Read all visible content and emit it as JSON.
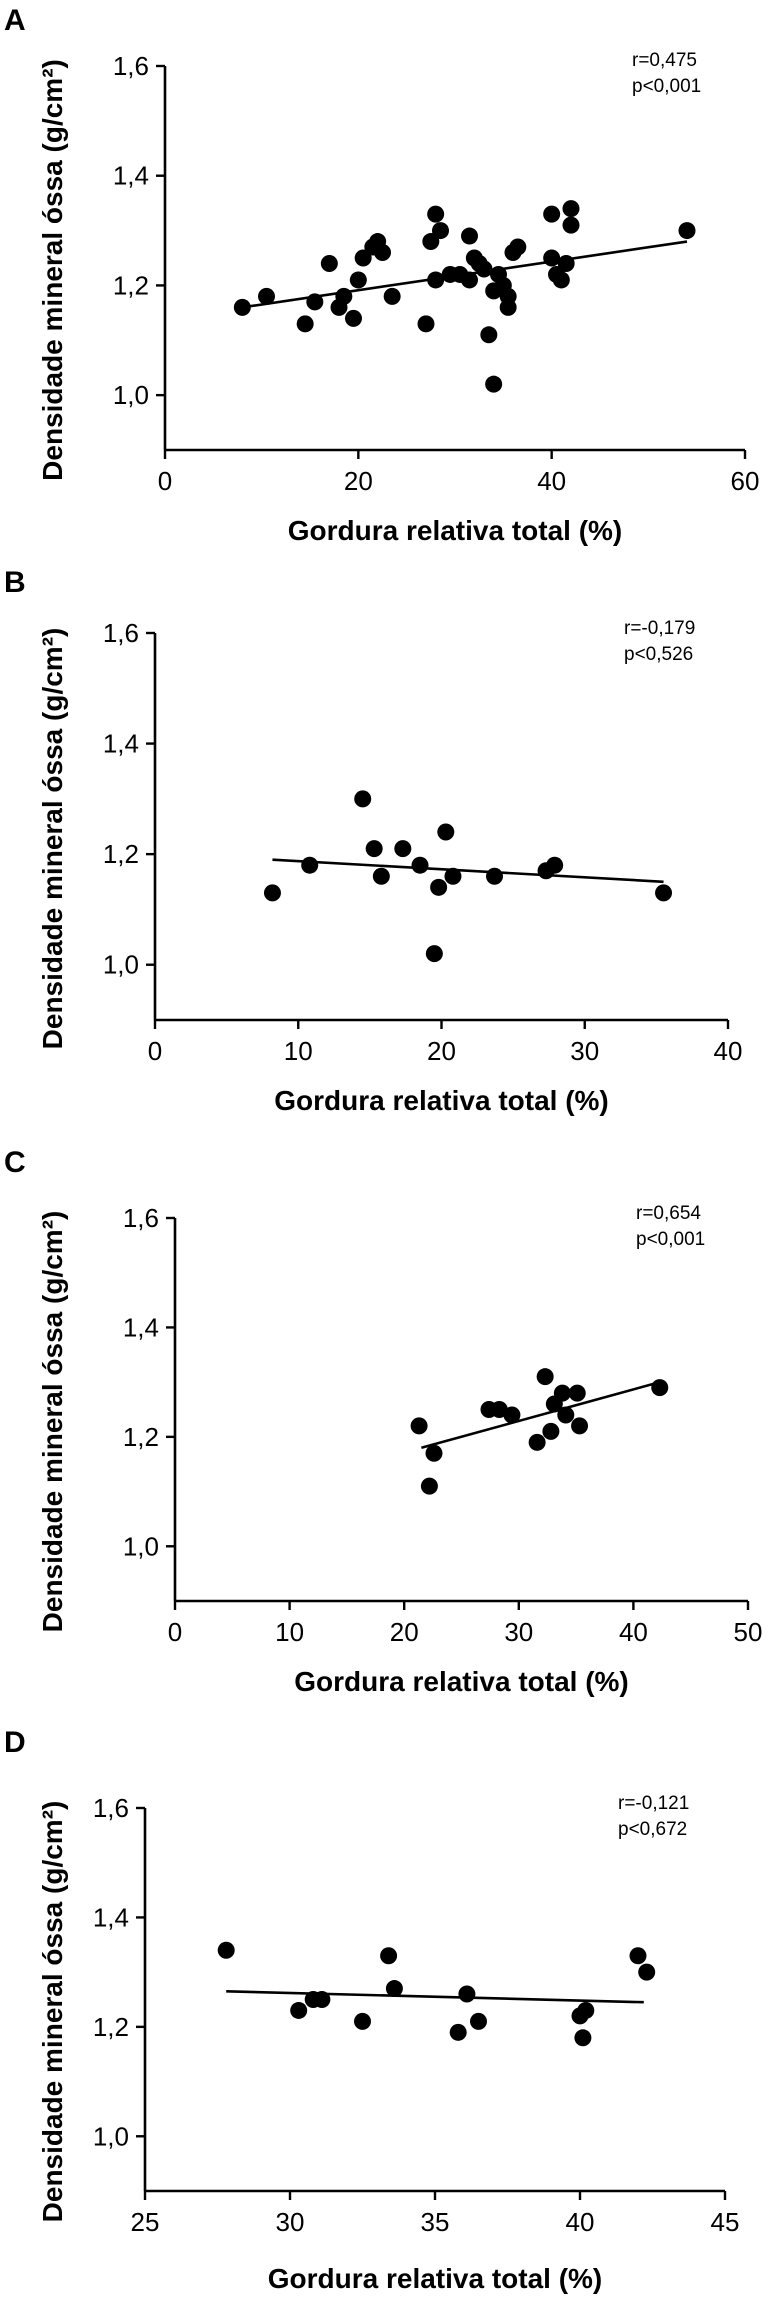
{
  "chart_data": [
    {
      "type": "scatter",
      "panel": "A",
      "xlabel": "Gordura relativa total (%)",
      "ylabel": "Densidade mineral óssa (g/cm²)",
      "xlim": [
        0,
        60
      ],
      "ylim": [
        0.9,
        1.6
      ],
      "xticks": [
        "0",
        "20",
        "40",
        "60"
      ],
      "xtick_values": [
        0,
        20,
        40,
        60
      ],
      "yticks": [
        "1,0",
        "1,2",
        "1,4",
        "1,6"
      ],
      "ytick_values": [
        1.0,
        1.2,
        1.4,
        1.6
      ],
      "stat_r": "r=0,475",
      "stat_p": "p<0,001",
      "trend": {
        "x": [
          8,
          54
        ],
        "y": [
          1.16,
          1.28
        ]
      },
      "points": [
        [
          8,
          1.16
        ],
        [
          10.5,
          1.18
        ],
        [
          14.5,
          1.13
        ],
        [
          15.5,
          1.17
        ],
        [
          17,
          1.24
        ],
        [
          18,
          1.16
        ],
        [
          18.5,
          1.18
        ],
        [
          19.5,
          1.14
        ],
        [
          20,
          1.21
        ],
        [
          20.5,
          1.25
        ],
        [
          21.5,
          1.27
        ],
        [
          22,
          1.28
        ],
        [
          22.5,
          1.26
        ],
        [
          23.5,
          1.18
        ],
        [
          27,
          1.13
        ],
        [
          27.5,
          1.28
        ],
        [
          28,
          1.33
        ],
        [
          28.5,
          1.3
        ],
        [
          28,
          1.21
        ],
        [
          29.5,
          1.22
        ],
        [
          30.5,
          1.22
        ],
        [
          31.5,
          1.21
        ],
        [
          31.5,
          1.29
        ],
        [
          32,
          1.25
        ],
        [
          32.5,
          1.24
        ],
        [
          33,
          1.23
        ],
        [
          33.5,
          1.11
        ],
        [
          34,
          1.19
        ],
        [
          34,
          1.02
        ],
        [
          34.5,
          1.22
        ],
        [
          35,
          1.2
        ],
        [
          35.5,
          1.18
        ],
        [
          35.5,
          1.16
        ],
        [
          36,
          1.26
        ],
        [
          36.5,
          1.27
        ],
        [
          40,
          1.33
        ],
        [
          40,
          1.25
        ],
        [
          40.5,
          1.22
        ],
        [
          41,
          1.21
        ],
        [
          41.5,
          1.24
        ],
        [
          42,
          1.34
        ],
        [
          42,
          1.31
        ],
        [
          54,
          1.3
        ]
      ]
    },
    {
      "type": "scatter",
      "panel": "B",
      "xlabel": "Gordura relativa total (%)",
      "ylabel": "Densidade mineral óssa (g/cm²)",
      "xlim": [
        0,
        40
      ],
      "ylim": [
        0.9,
        1.6
      ],
      "xticks": [
        "0",
        "10",
        "20",
        "30",
        "40"
      ],
      "xtick_values": [
        0,
        10,
        20,
        30,
        40
      ],
      "yticks": [
        "1,0",
        "1,2",
        "1,4",
        "1,6"
      ],
      "ytick_values": [
        1.0,
        1.2,
        1.4,
        1.6
      ],
      "stat_r": "r=-0,179",
      "stat_p": "p<0,526",
      "trend": {
        "x": [
          8.2,
          35.5
        ],
        "y": [
          1.19,
          1.15
        ]
      },
      "points": [
        [
          8.2,
          1.13
        ],
        [
          10.8,
          1.18
        ],
        [
          14.5,
          1.3
        ],
        [
          15.3,
          1.21
        ],
        [
          15.8,
          1.16
        ],
        [
          17.3,
          1.21
        ],
        [
          18.5,
          1.18
        ],
        [
          19.5,
          1.02
        ],
        [
          19.8,
          1.14
        ],
        [
          20.3,
          1.24
        ],
        [
          20.8,
          1.16
        ],
        [
          23.7,
          1.16
        ],
        [
          27.3,
          1.17
        ],
        [
          27.9,
          1.18
        ],
        [
          35.5,
          1.13
        ]
      ]
    },
    {
      "type": "scatter",
      "panel": "C",
      "xlabel": "Gordura relativa total (%)",
      "ylabel": "Densidade mineral óssa (g/cm²)",
      "xlim": [
        0,
        50
      ],
      "ylim": [
        0.9,
        1.6
      ],
      "xticks": [
        "0",
        "10",
        "20",
        "30",
        "40",
        "50"
      ],
      "xtick_values": [
        0,
        10,
        20,
        30,
        40,
        50
      ],
      "yticks": [
        "1,0",
        "1,2",
        "1,4",
        "1,6"
      ],
      "ytick_values": [
        1.0,
        1.2,
        1.4,
        1.6
      ],
      "stat_r": "r=0,654",
      "stat_p": "p<0,001",
      "trend": {
        "x": [
          21.5,
          42.3
        ],
        "y": [
          1.18,
          1.3
        ]
      },
      "points": [
        [
          21.3,
          1.22
        ],
        [
          22.2,
          1.11
        ],
        [
          22.6,
          1.17
        ],
        [
          27.4,
          1.25
        ],
        [
          28.3,
          1.25
        ],
        [
          29.4,
          1.24
        ],
        [
          31.6,
          1.19
        ],
        [
          32.3,
          1.31
        ],
        [
          32.8,
          1.21
        ],
        [
          33.1,
          1.26
        ],
        [
          33.8,
          1.28
        ],
        [
          34.1,
          1.24
        ],
        [
          35.1,
          1.28
        ],
        [
          35.3,
          1.22
        ],
        [
          42.3,
          1.29
        ]
      ]
    },
    {
      "type": "scatter",
      "panel": "D",
      "xlabel": "Gordura relativa total (%)",
      "ylabel": "Densidade mineral óssa (g/cm²)",
      "xlim": [
        25,
        45
      ],
      "ylim": [
        0.9,
        1.6
      ],
      "xticks": [
        "25",
        "30",
        "35",
        "40",
        "45"
      ],
      "xtick_values": [
        25,
        30,
        35,
        40,
        45
      ],
      "yticks": [
        "1,0",
        "1,2",
        "1,4",
        "1,6"
      ],
      "ytick_values": [
        1.0,
        1.2,
        1.4,
        1.6
      ],
      "stat_r": "r=-0,121",
      "stat_p": "p<0,672",
      "trend": {
        "x": [
          27.8,
          42.2
        ],
        "y": [
          1.265,
          1.245
        ]
      },
      "points": [
        [
          27.8,
          1.34
        ],
        [
          30.3,
          1.23
        ],
        [
          30.8,
          1.25
        ],
        [
          31.1,
          1.25
        ],
        [
          32.5,
          1.21
        ],
        [
          33.4,
          1.33
        ],
        [
          33.6,
          1.27
        ],
        [
          35.8,
          1.19
        ],
        [
          36.1,
          1.26
        ],
        [
          36.5,
          1.21
        ],
        [
          40,
          1.22
        ],
        [
          40.1,
          1.18
        ],
        [
          40.2,
          1.23
        ],
        [
          42,
          1.33
        ],
        [
          42.3,
          1.3
        ]
      ]
    }
  ],
  "panels": {
    "a": {
      "letter": "A"
    },
    "b": {
      "letter": "B"
    },
    "c": {
      "letter": "C"
    },
    "d": {
      "letter": "D"
    }
  },
  "colors": {
    "marker": "#000000",
    "axis": "#000000",
    "background": "#ffffff"
  }
}
